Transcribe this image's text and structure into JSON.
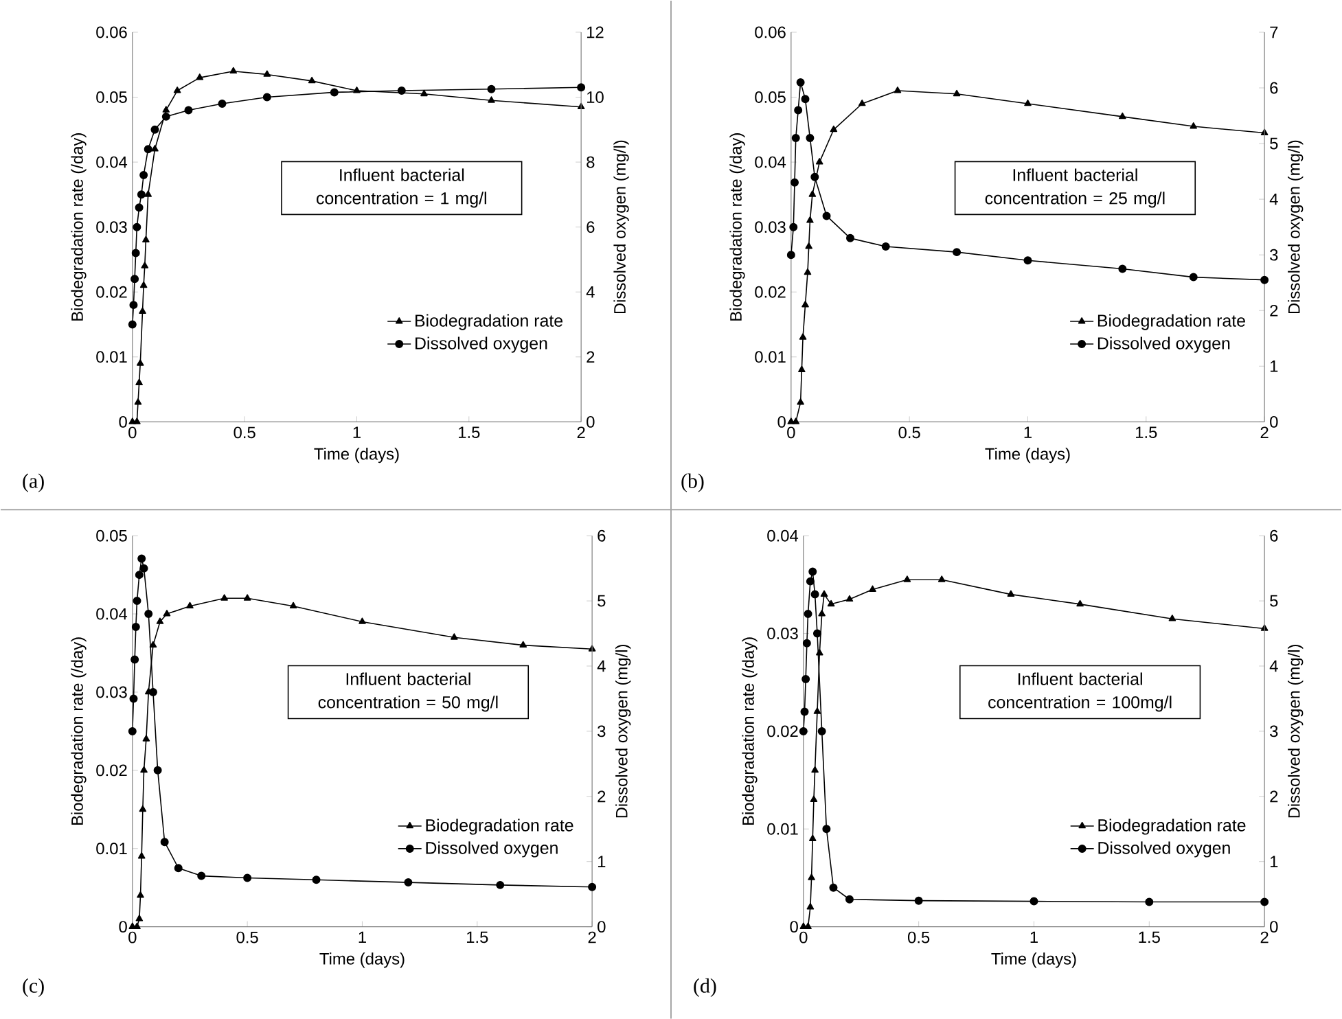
{
  "chart_data": [
    {
      "type": "line",
      "xlabel": "Time (days)",
      "ylabel": "Biodegradation rate (/day)",
      "y2label": "Dissolved oxygen (mg/l)",
      "xlim": [
        0,
        2
      ],
      "xticks": [
        0,
        0.5,
        1,
        1.5,
        2
      ],
      "ylim": [
        0,
        0.06
      ],
      "yticks": [
        0,
        0.01,
        0.02,
        0.03,
        0.04,
        0.05,
        0.06
      ],
      "y2lim": [
        0,
        12
      ],
      "y2ticks": [
        0,
        2,
        4,
        6,
        8,
        10,
        12
      ],
      "legend": "bottom right",
      "annotations": [
        "(a)",
        "Influent bacterial concentration = 1 mg/l"
      ],
      "series": [
        {
          "name": "Biodegradation rate",
          "color": "#000000",
          "marker": "triangle",
          "x": [
            0,
            0.02,
            0.025,
            0.03,
            0.035,
            0.045,
            0.05,
            0.055,
            0.06,
            0.07,
            0.1,
            0.15,
            0.2,
            0.3,
            0.45,
            0.6,
            0.8,
            1.0,
            1.3,
            1.6,
            2.0
          ],
          "values": [
            0,
            0,
            0.003,
            0.006,
            0.009,
            0.017,
            0.021,
            0.024,
            0.028,
            0.035,
            0.042,
            0.048,
            0.051,
            0.053,
            0.054,
            0.0535,
            0.0525,
            0.051,
            0.0505,
            0.0495,
            0.0485
          ]
        },
        {
          "name": "Dissolved oxygen",
          "color": "#000000",
          "marker": "circle",
          "axis": "y2",
          "x": [
            0,
            0.005,
            0.01,
            0.015,
            0.02,
            0.03,
            0.04,
            0.05,
            0.07,
            0.1,
            0.15,
            0.25,
            0.4,
            0.6,
            0.9,
            1.2,
            1.6,
            2.0
          ],
          "values": [
            3.0,
            3.6,
            4.4,
            5.2,
            6.0,
            6.6,
            7.0,
            7.6,
            8.4,
            9.0,
            9.4,
            9.6,
            9.8,
            10.0,
            10.15,
            10.2,
            10.25,
            10.3
          ]
        }
      ]
    },
    {
      "type": "line",
      "xlabel": "Time (days)",
      "ylabel": "Biodegradation rate (/day)",
      "y2label": "Dissolved oxygen (mg/l)",
      "xlim": [
        0,
        2
      ],
      "xticks": [
        0,
        0.5,
        1,
        1.5,
        2
      ],
      "ylim": [
        0,
        0.06
      ],
      "yticks": [
        0,
        0.01,
        0.02,
        0.03,
        0.04,
        0.05,
        0.06
      ],
      "y2lim": [
        0,
        7
      ],
      "y2ticks": [
        0,
        1,
        2,
        3,
        4,
        5,
        6,
        7
      ],
      "legend": "bottom right",
      "annotations": [
        "(b)",
        "Influent bacterial concentration = 25 mg/l"
      ],
      "series": [
        {
          "name": "Biodegradation rate",
          "color": "#000000",
          "marker": "triangle",
          "x": [
            0,
            0.02,
            0.04,
            0.045,
            0.05,
            0.06,
            0.07,
            0.075,
            0.08,
            0.09,
            0.12,
            0.18,
            0.3,
            0.45,
            0.7,
            1.0,
            1.4,
            1.7,
            2.0
          ],
          "values": [
            0,
            0,
            0.003,
            0.008,
            0.013,
            0.018,
            0.023,
            0.027,
            0.031,
            0.035,
            0.04,
            0.045,
            0.049,
            0.051,
            0.0505,
            0.049,
            0.047,
            0.0455,
            0.0445
          ]
        },
        {
          "name": "Dissolved oxygen",
          "color": "#000000",
          "marker": "circle",
          "axis": "y2",
          "x": [
            0,
            0.01,
            0.015,
            0.02,
            0.03,
            0.04,
            0.06,
            0.08,
            0.1,
            0.15,
            0.25,
            0.4,
            0.7,
            1.0,
            1.4,
            1.7,
            2.0
          ],
          "values": [
            3.0,
            3.5,
            4.3,
            5.1,
            5.6,
            6.1,
            5.8,
            5.1,
            4.4,
            3.7,
            3.3,
            3.15,
            3.05,
            2.9,
            2.75,
            2.6,
            2.55
          ]
        }
      ]
    },
    {
      "type": "line",
      "xlabel": "Time (days)",
      "ylabel": "Biodegradation rate (/day)",
      "y2label": "Dissolved oxygen (mg/l)",
      "xlim": [
        0,
        2
      ],
      "xticks": [
        0,
        0.5,
        1,
        1.5,
        2
      ],
      "ylim": [
        0,
        0.05
      ],
      "yticks": [
        0,
        0.01,
        0.02,
        0.03,
        0.04,
        0.05
      ],
      "y2lim": [
        0,
        6
      ],
      "y2ticks": [
        0,
        1,
        2,
        3,
        4,
        5,
        6
      ],
      "legend": "bottom right",
      "annotations": [
        "(c)",
        "Influent bacterial concentration = 50 mg/l"
      ],
      "series": [
        {
          "name": "Biodegradation rate",
          "color": "#000000",
          "marker": "triangle",
          "x": [
            0,
            0.02,
            0.03,
            0.035,
            0.04,
            0.045,
            0.05,
            0.06,
            0.07,
            0.09,
            0.12,
            0.15,
            0.25,
            0.4,
            0.5,
            0.7,
            1.0,
            1.4,
            1.7,
            2.0
          ],
          "values": [
            0,
            0,
            0.001,
            0.004,
            0.009,
            0.015,
            0.02,
            0.024,
            0.03,
            0.036,
            0.039,
            0.04,
            0.041,
            0.042,
            0.042,
            0.041,
            0.039,
            0.037,
            0.036,
            0.0355
          ]
        },
        {
          "name": "Dissolved oxygen",
          "color": "#000000",
          "marker": "circle",
          "axis": "y2",
          "x": [
            0,
            0.005,
            0.01,
            0.015,
            0.02,
            0.03,
            0.04,
            0.05,
            0.07,
            0.09,
            0.11,
            0.14,
            0.2,
            0.3,
            0.5,
            0.8,
            1.2,
            1.6,
            2.0
          ],
          "values": [
            3.0,
            3.5,
            4.1,
            4.6,
            5.0,
            5.4,
            5.65,
            5.5,
            4.8,
            3.6,
            2.4,
            1.3,
            0.9,
            0.78,
            0.75,
            0.72,
            0.68,
            0.64,
            0.61
          ]
        }
      ]
    },
    {
      "type": "line",
      "xlabel": "Time (days)",
      "ylabel": "Biodegradation rate (/day)",
      "y2label": "Dissolved oxygen (mg/l)",
      "xlim": [
        0,
        2
      ],
      "xticks": [
        0,
        0.5,
        1,
        1.5,
        2
      ],
      "ylim": [
        0,
        0.04
      ],
      "yticks": [
        0,
        0.01,
        0.02,
        0.03,
        0.04
      ],
      "y2lim": [
        0,
        6
      ],
      "y2ticks": [
        0,
        1,
        2,
        3,
        4,
        5,
        6
      ],
      "legend": "bottom right",
      "annotations": [
        "(d)",
        "Influent bacterial concentration = 100mg/l"
      ],
      "series": [
        {
          "name": "Biodegradation rate",
          "color": "#000000",
          "marker": "triangle",
          "x": [
            0,
            0.02,
            0.03,
            0.035,
            0.04,
            0.045,
            0.05,
            0.06,
            0.07,
            0.08,
            0.09,
            0.12,
            0.2,
            0.3,
            0.45,
            0.6,
            0.9,
            1.2,
            1.6,
            2.0
          ],
          "values": [
            0,
            0,
            0.002,
            0.005,
            0.009,
            0.013,
            0.016,
            0.022,
            0.028,
            0.032,
            0.034,
            0.033,
            0.0335,
            0.0345,
            0.0355,
            0.0355,
            0.034,
            0.033,
            0.0315,
            0.0305
          ]
        },
        {
          "name": "Dissolved oxygen",
          "color": "#000000",
          "marker": "circle",
          "axis": "y2",
          "x": [
            0,
            0.005,
            0.01,
            0.015,
            0.02,
            0.03,
            0.04,
            0.05,
            0.06,
            0.08,
            0.1,
            0.13,
            0.2,
            0.5,
            1.0,
            1.5,
            2.0
          ],
          "values": [
            3.0,
            3.3,
            3.8,
            4.35,
            4.8,
            5.3,
            5.45,
            5.1,
            4.5,
            3.0,
            1.5,
            0.6,
            0.42,
            0.4,
            0.39,
            0.38,
            0.38
          ]
        }
      ]
    }
  ]
}
